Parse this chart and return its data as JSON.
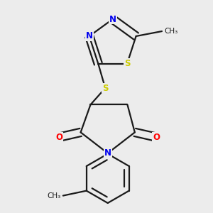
{
  "background_color": "#ececec",
  "bond_color": "#1a1a1a",
  "bond_width": 1.6,
  "atom_colors": {
    "N": "#0000ee",
    "S": "#cccc00",
    "O": "#ff0000",
    "C": "#1a1a1a"
  },
  "font_size_atom": 8.5
}
